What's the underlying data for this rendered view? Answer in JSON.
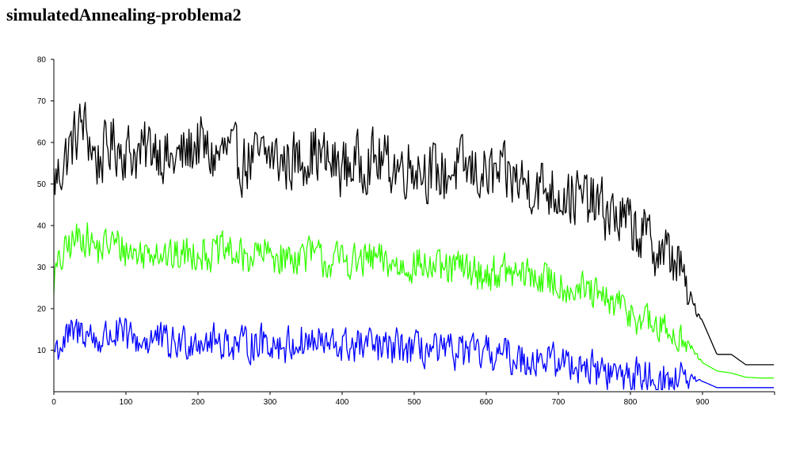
{
  "page": {
    "title": "simulatedAnnealing-problema2"
  },
  "chart_data": {
    "type": "line",
    "title": "simulatedAnnealing-problema2",
    "xlabel": "",
    "ylabel": "",
    "xlim": [
      0,
      1000
    ],
    "ylim": [
      0,
      80
    ],
    "x_ticks": [
      0,
      100,
      200,
      300,
      400,
      500,
      600,
      700,
      800,
      900
    ],
    "y_ticks": [
      10,
      20,
      30,
      40,
      50,
      60,
      70,
      80
    ],
    "grid": false,
    "legend": "none",
    "x": [
      0,
      20,
      40,
      60,
      80,
      100,
      120,
      140,
      160,
      180,
      200,
      220,
      240,
      260,
      280,
      300,
      320,
      340,
      360,
      380,
      400,
      420,
      440,
      460,
      480,
      500,
      520,
      540,
      560,
      580,
      600,
      620,
      640,
      660,
      680,
      700,
      720,
      740,
      760,
      780,
      800,
      820,
      840,
      860,
      870,
      880,
      890,
      900,
      920,
      940,
      960,
      980,
      1000
    ],
    "series": [
      {
        "color": "#000000",
        "values": [
          50,
          58,
          65,
          55,
          60,
          58,
          57,
          60,
          55,
          57,
          60,
          56,
          58,
          55,
          56,
          57,
          55,
          56,
          58,
          55,
          54,
          55,
          56,
          55,
          54,
          55,
          53,
          52,
          54,
          53,
          52,
          52,
          51,
          50,
          49,
          48,
          47,
          46,
          44,
          42,
          40,
          37,
          34,
          32,
          30,
          22,
          20,
          17,
          9,
          9,
          6.5,
          6.5,
          6.5
        ]
      },
      {
        "color": "#33ff00",
        "values": [
          28,
          35,
          38,
          34,
          36,
          34,
          33,
          35,
          32,
          33,
          34,
          33,
          34,
          32,
          33,
          33,
          32,
          33,
          33,
          31,
          32,
          31,
          32,
          31,
          30,
          31,
          30,
          29,
          30,
          29,
          28,
          29,
          28,
          28,
          27,
          26,
          25,
          24,
          22,
          21,
          19,
          17,
          15,
          14,
          13,
          11,
          9,
          7,
          5,
          4.5,
          3.5,
          3.3,
          3.3
        ]
      },
      {
        "color": "#0000ff",
        "values": [
          10,
          13,
          15,
          12,
          14,
          13,
          12,
          13,
          11,
          12,
          13,
          12,
          12,
          11,
          12,
          12,
          11,
          12,
          12,
          11,
          11,
          11,
          11,
          10,
          11,
          10,
          10,
          9,
          10,
          9,
          9,
          9,
          8,
          8,
          8,
          7,
          7,
          6,
          5,
          4,
          4,
          3.5,
          3,
          2,
          4.5,
          2.5,
          2.5,
          2.5,
          1,
          1,
          1,
          1,
          1
        ]
      }
    ]
  }
}
